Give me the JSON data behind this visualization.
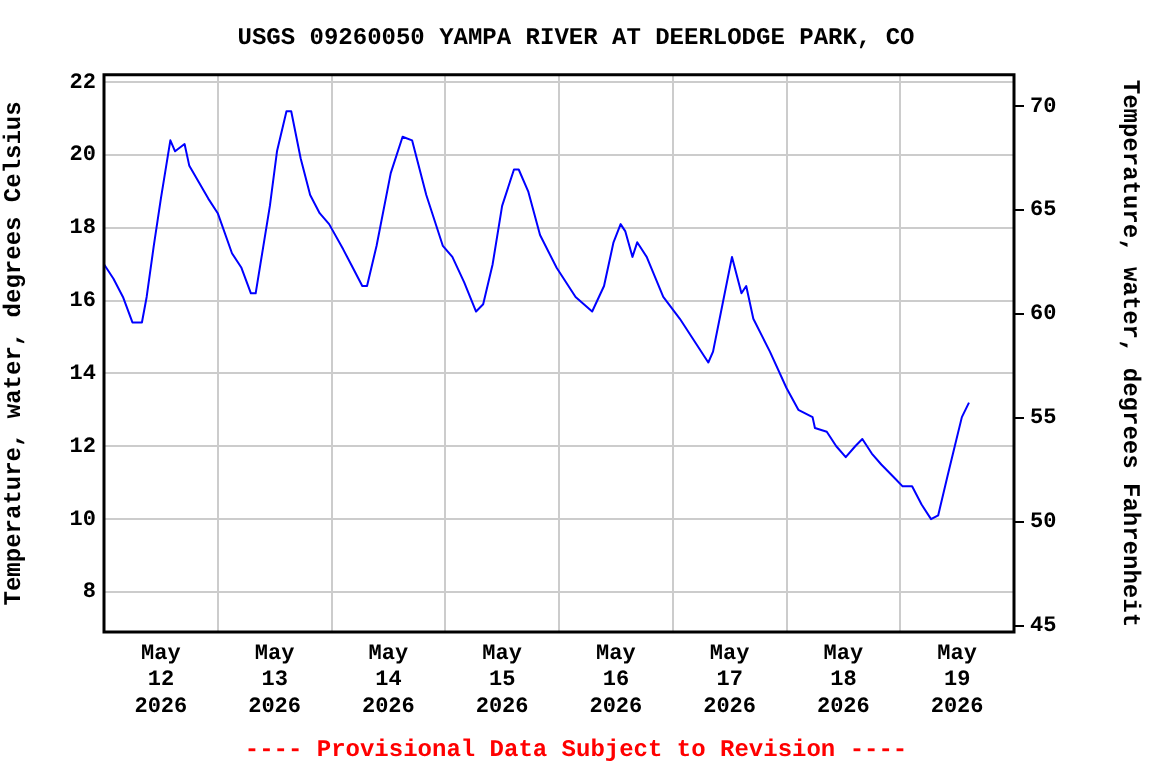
{
  "chart_data": {
    "type": "line",
    "title": "USGS 09260050 YAMPA RIVER AT DEERLODGE PARK, CO",
    "ylabel": "Temperature, water, degrees Celsius",
    "y2label": "Temperature, water, degrees Fahrenheit",
    "annotations": [
      "---- Provisional Data Subject to Revision ----"
    ],
    "x": [
      "2026-05-12T00:00",
      "2026-05-12T02:00",
      "2026-05-12T04:00",
      "2026-05-12T06:00",
      "2026-05-12T08:00",
      "2026-05-12T09:00",
      "2026-05-12T10:30",
      "2026-05-12T12:00",
      "2026-05-12T14:00",
      "2026-05-12T15:00",
      "2026-05-12T17:00",
      "2026-05-12T18:00",
      "2026-05-12T22:00",
      "2026-05-13T00:00",
      "2026-05-13T03:00",
      "2026-05-13T05:00",
      "2026-05-13T07:00",
      "2026-05-13T08:00",
      "2026-05-13T09:00",
      "2026-05-13T11:00",
      "2026-05-13T12:30",
      "2026-05-13T14:30",
      "2026-05-13T15:30",
      "2026-05-13T17:30",
      "2026-05-13T19:30",
      "2026-05-13T21:30",
      "2026-05-13T23:30",
      "2026-05-14T02:30",
      "2026-05-14T04:30",
      "2026-05-14T06:30",
      "2026-05-14T07:30",
      "2026-05-14T09:30",
      "2026-05-14T12:30",
      "2026-05-14T15:00",
      "2026-05-14T17:00",
      "2026-05-14T20:00",
      "2026-05-14T23:30",
      "2026-05-15T01:30",
      "2026-05-15T04:00",
      "2026-05-15T06:30",
      "2026-05-15T08:00",
      "2026-05-15T10:00",
      "2026-05-15T12:00",
      "2026-05-15T14:30",
      "2026-05-15T15:30",
      "2026-05-15T17:30",
      "2026-05-15T20:00",
      "2026-05-15T23:30",
      "2026-05-16T03:30",
      "2026-05-16T07:00",
      "2026-05-16T09:30",
      "2026-05-16T11:30",
      "2026-05-16T13:00",
      "2026-05-16T14:00",
      "2026-05-16T15:30",
      "2026-05-16T16:30",
      "2026-05-16T18:30",
      "2026-05-16T22:00",
      "2026-05-17T01:30",
      "2026-05-17T05:00",
      "2026-05-17T07:30",
      "2026-05-17T08:30",
      "2026-05-17T10:30",
      "2026-05-17T12:30",
      "2026-05-17T14:30",
      "2026-05-17T15:30",
      "2026-05-17T17:00",
      "2026-05-17T20:30",
      "2026-05-18T00:00",
      "2026-05-18T02:30",
      "2026-05-18T05:30",
      "2026-05-18T06:00",
      "2026-05-18T08:30",
      "2026-05-18T10:30",
      "2026-05-18T12:30",
      "2026-05-18T14:30",
      "2026-05-18T16:00",
      "2026-05-18T18:00",
      "2026-05-18T20:00",
      "2026-05-18T23:00",
      "2026-05-19T00:30",
      "2026-05-19T02:30",
      "2026-05-19T04:30",
      "2026-05-19T06:30",
      "2026-05-19T08:00",
      "2026-05-19T10:00",
      "2026-05-19T11:30",
      "2026-05-19T13:00",
      "2026-05-19T14:30"
    ],
    "series": [
      {
        "color": "#0000ff",
        "values": [
          17.0,
          16.6,
          16.1,
          15.4,
          15.4,
          16.1,
          17.5,
          18.8,
          20.4,
          20.1,
          20.3,
          19.7,
          18.8,
          18.4,
          17.3,
          16.9,
          16.2,
          16.2,
          17.0,
          18.6,
          20.1,
          21.2,
          21.2,
          19.9,
          18.9,
          18.4,
          18.1,
          17.4,
          16.9,
          16.4,
          16.4,
          17.5,
          19.5,
          20.5,
          20.4,
          18.9,
          17.5,
          17.2,
          16.5,
          15.7,
          15.9,
          17.0,
          18.6,
          19.6,
          19.6,
          19.0,
          17.8,
          16.9,
          16.1,
          15.7,
          16.4,
          17.6,
          18.1,
          17.9,
          17.2,
          17.6,
          17.2,
          16.1,
          15.5,
          14.8,
          14.3,
          14.6,
          15.9,
          17.2,
          16.2,
          16.4,
          15.5,
          14.6,
          13.6,
          13.0,
          12.8,
          12.5,
          12.4,
          12.0,
          11.7,
          12.0,
          12.2,
          11.8,
          11.5,
          11.1,
          10.9,
          10.9,
          10.4,
          10.0,
          10.1,
          11.2,
          12.0,
          12.8,
          13.2
        ]
      }
    ],
    "xlim": [
      "2026-05-12",
      "2026-05-20"
    ],
    "xticks": [
      {
        "value": "2026-05-12T12:00",
        "label": "May 12 2026"
      },
      {
        "value": "2026-05-13",
        "label": null
      },
      {
        "value": "2026-05-13T12:00",
        "label": "May 13 2026"
      },
      {
        "value": "2026-05-14",
        "label": null
      },
      {
        "value": "2026-05-14T12:00",
        "label": "May 14 2026"
      },
      {
        "value": "2026-05-15",
        "label": null
      },
      {
        "value": "2026-05-15T12:00",
        "label": "May 15 2026"
      },
      {
        "value": "2026-05-16",
        "label": null
      },
      {
        "value": "2026-05-16T12:00",
        "label": "May 16 2026"
      },
      {
        "value": "2026-05-17",
        "label": null
      },
      {
        "value": "2026-05-17T12:00",
        "label": "May 17 2026"
      },
      {
        "value": "2026-05-18",
        "label": null
      },
      {
        "value": "2026-05-18T12:00",
        "label": "May 18 2026"
      },
      {
        "value": "2026-05-19",
        "label": null
      },
      {
        "value": "2026-05-19T12:00",
        "label": "May 19 2026"
      }
    ],
    "ylim": [
      6.9,
      22.2
    ],
    "yticks": [
      8,
      10,
      12,
      14,
      16,
      18,
      20,
      22
    ],
    "y2lim": [
      44.7,
      71.5
    ],
    "y2ticks": [
      45,
      50,
      55,
      60,
      65,
      70
    ],
    "grid": true,
    "legend": false,
    "marker": "none",
    "line_style": "solid"
  }
}
